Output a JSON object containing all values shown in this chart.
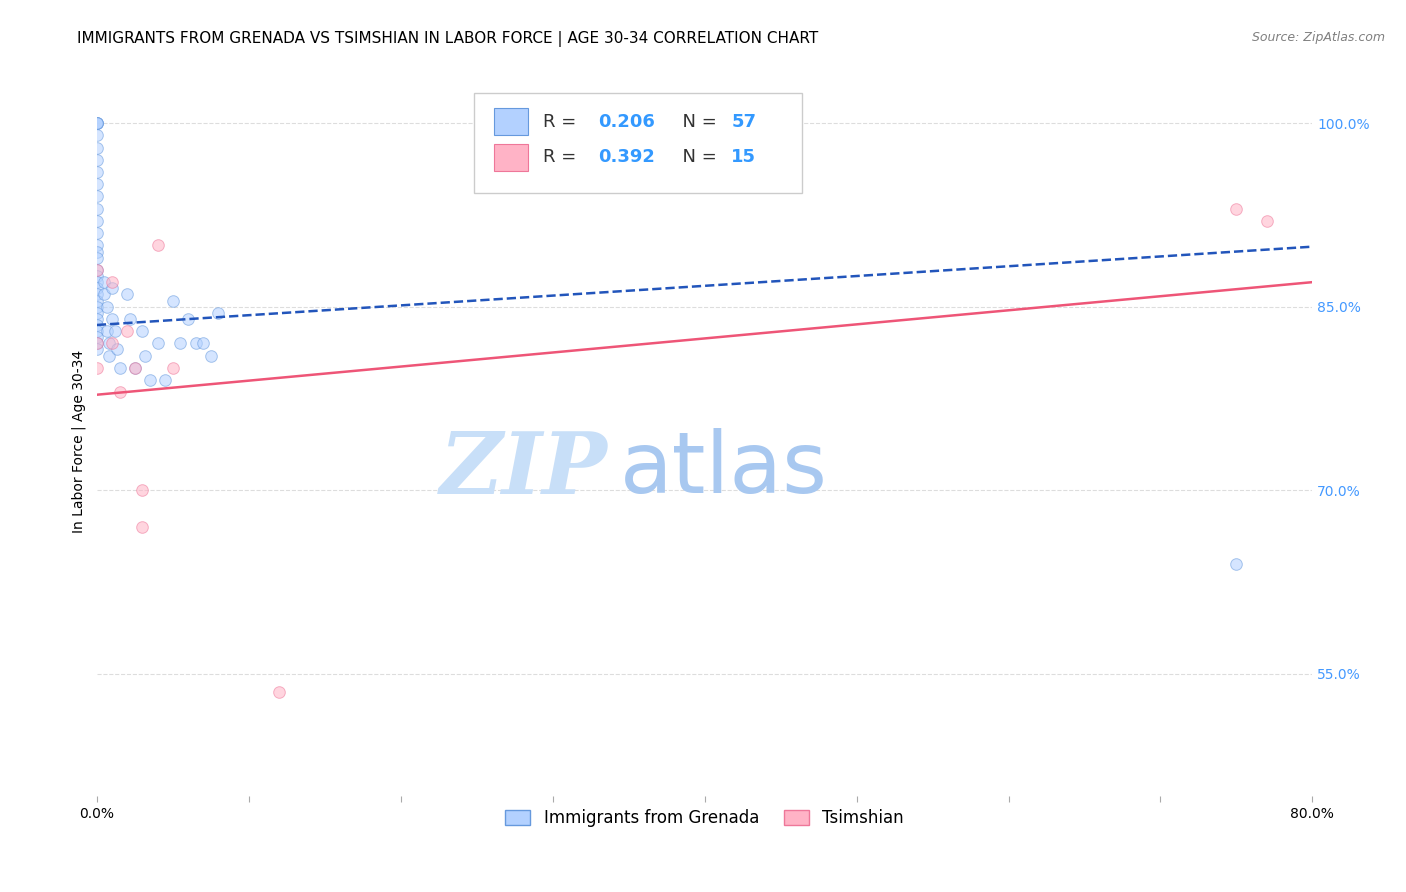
{
  "title": "IMMIGRANTS FROM GRENADA VS TSIMSHIAN IN LABOR FORCE | AGE 30-34 CORRELATION CHART",
  "source": "Source: ZipAtlas.com",
  "ylabel": "In Labor Force | Age 30-34",
  "x_min": 0.0,
  "x_max": 0.8,
  "y_min": 0.45,
  "y_max": 1.03,
  "x_ticks": [
    0.0,
    0.1,
    0.2,
    0.3,
    0.4,
    0.5,
    0.6,
    0.7,
    0.8
  ],
  "y_ticks": [
    0.55,
    0.7,
    0.85,
    1.0
  ],
  "y_tick_labels": [
    "55.0%",
    "70.0%",
    "85.0%",
    "100.0%"
  ],
  "y_tick_color": "#4499ff",
  "grid_color": "#dddddd",
  "background_color": "#ffffff",
  "watermark_zip": "ZIP",
  "watermark_atlas": "atlas",
  "watermark_color_zip": "#c8dff8",
  "watermark_color_atlas": "#a8c8f0",
  "title_fontsize": 11,
  "source_fontsize": 9,
  "ylabel_fontsize": 10,
  "marker_size": 70,
  "alpha": 0.55,
  "series": [
    {
      "name": "Immigrants from Grenada",
      "R": 0.206,
      "N": 57,
      "color": "#b3d1ff",
      "edge_color": "#6699dd",
      "line_color": "#2255bb",
      "line_style": "--",
      "trendline_slope": 0.08,
      "trendline_intercept": 0.835,
      "x": [
        0.0,
        0.0,
        0.0,
        0.0,
        0.0,
        0.0,
        0.0,
        0.0,
        0.0,
        0.0,
        0.0,
        0.0,
        0.0,
        0.0,
        0.0,
        0.0,
        0.0,
        0.0,
        0.0,
        0.0,
        0.0,
        0.0,
        0.0,
        0.0,
        0.0,
        0.0,
        0.0,
        0.0,
        0.0,
        0.0,
        0.005,
        0.005,
        0.007,
        0.007,
        0.008,
        0.008,
        0.01,
        0.01,
        0.012,
        0.013,
        0.015,
        0.02,
        0.022,
        0.025,
        0.03,
        0.032,
        0.035,
        0.04,
        0.045,
        0.05,
        0.055,
        0.06,
        0.065,
        0.07,
        0.075,
        0.08,
        0.75
      ],
      "y": [
        1.0,
        1.0,
        1.0,
        1.0,
        0.99,
        0.98,
        0.97,
        0.96,
        0.95,
        0.94,
        0.93,
        0.92,
        0.91,
        0.9,
        0.895,
        0.89,
        0.88,
        0.875,
        0.87,
        0.865,
        0.86,
        0.855,
        0.85,
        0.845,
        0.84,
        0.835,
        0.83,
        0.825,
        0.82,
        0.815,
        0.87,
        0.86,
        0.85,
        0.83,
        0.82,
        0.81,
        0.865,
        0.84,
        0.83,
        0.815,
        0.8,
        0.86,
        0.84,
        0.8,
        0.83,
        0.81,
        0.79,
        0.82,
        0.79,
        0.855,
        0.82,
        0.84,
        0.82,
        0.82,
        0.81,
        0.845,
        0.64
      ]
    },
    {
      "name": "Tsimshian",
      "R": 0.392,
      "N": 15,
      "color": "#ffb3c6",
      "edge_color": "#ee7799",
      "line_color": "#ee5577",
      "line_style": "-",
      "trendline_slope": 0.115,
      "trendline_intercept": 0.778,
      "x": [
        0.0,
        0.0,
        0.0,
        0.01,
        0.01,
        0.015,
        0.02,
        0.025,
        0.03,
        0.03,
        0.04,
        0.05,
        0.12,
        0.75,
        0.77
      ],
      "y": [
        0.88,
        0.82,
        0.8,
        0.87,
        0.82,
        0.78,
        0.83,
        0.8,
        0.7,
        0.67,
        0.9,
        0.8,
        0.535,
        0.93,
        0.92
      ]
    }
  ]
}
